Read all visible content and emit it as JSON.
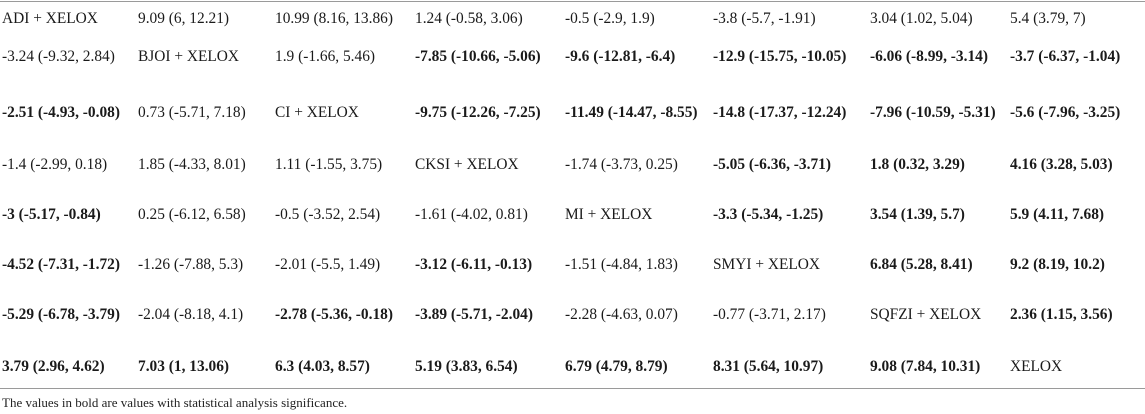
{
  "rows": [
    [
      {
        "text": "ADI + XELOX",
        "bold": false
      },
      {
        "text": "9.09 (6, 12.21)",
        "bold": false
      },
      {
        "text": "10.99 (8.16, 13.86)",
        "bold": false
      },
      {
        "text": "1.24 (-0.58, 3.06)",
        "bold": false
      },
      {
        "text": "-0.5 (-2.9, 1.9)",
        "bold": false
      },
      {
        "text": "-3.8 (-5.7, -1.91)",
        "bold": false
      },
      {
        "text": "3.04 (1.02, 5.04)",
        "bold": false
      },
      {
        "text": "5.4 (3.79, 7)",
        "bold": false
      }
    ],
    [
      {
        "text": "-3.24 (-9.32, 2.84)",
        "bold": false
      },
      {
        "text": "BJOI + XELOX",
        "bold": false
      },
      {
        "text": "1.9 (-1.66, 5.46)",
        "bold": false
      },
      {
        "text": "-7.85 (-10.66, -5.06)",
        "bold": true
      },
      {
        "text": "-9.6 (-12.81, -6.4)",
        "bold": true
      },
      {
        "text": "-12.9 (-15.75, -10.05)",
        "bold": true
      },
      {
        "text": "-6.06 (-8.99, -3.14)",
        "bold": true
      },
      {
        "text": "-3.7 (-6.37, -1.04)",
        "bold": true
      }
    ],
    [
      {
        "text": "-2.51 (-4.93, -0.08)",
        "bold": true
      },
      {
        "text": "0.73 (-5.71, 7.18)",
        "bold": false
      },
      {
        "text": "CI + XELOX",
        "bold": false
      },
      {
        "text": "-9.75 (-12.26, -7.25)",
        "bold": true
      },
      {
        "text": "-11.49 (-14.47, -8.55)",
        "bold": true
      },
      {
        "text": "-14.8 (-17.37, -12.24)",
        "bold": true
      },
      {
        "text": "-7.96 (-10.59, -5.31)",
        "bold": true
      },
      {
        "text": "-5.6 (-7.96, -3.25)",
        "bold": true
      }
    ],
    [
      {
        "text": "-1.4 (-2.99, 0.18)",
        "bold": false
      },
      {
        "text": "1.85 (-4.33, 8.01)",
        "bold": false
      },
      {
        "text": "1.11 (-1.55, 3.75)",
        "bold": false
      },
      {
        "text": "CKSI + XELOX",
        "bold": false
      },
      {
        "text": "-1.74 (-3.73, 0.25)",
        "bold": false
      },
      {
        "text": "-5.05 (-6.36, -3.71)",
        "bold": true
      },
      {
        "text": "1.8 (0.32, 3.29)",
        "bold": true
      },
      {
        "text": "4.16 (3.28, 5.03)",
        "bold": true
      }
    ],
    [
      {
        "text": "-3 (-5.17, -0.84)",
        "bold": true
      },
      {
        "text": "0.25 (-6.12, 6.58)",
        "bold": false
      },
      {
        "text": "-0.5 (-3.52, 2.54)",
        "bold": false
      },
      {
        "text": "-1.61 (-4.02, 0.81)",
        "bold": false
      },
      {
        "text": "MI + XELOX",
        "bold": false
      },
      {
        "text": "-3.3 (-5.34, -1.25)",
        "bold": true
      },
      {
        "text": "3.54 (1.39, 5.7)",
        "bold": true
      },
      {
        "text": "5.9 (4.11, 7.68)",
        "bold": true
      }
    ],
    [
      {
        "text": "-4.52 (-7.31, -1.72)",
        "bold": true
      },
      {
        "text": "-1.26 (-7.88, 5.3)",
        "bold": false
      },
      {
        "text": "-2.01 (-5.5, 1.49)",
        "bold": false
      },
      {
        "text": "-3.12 (-6.11, -0.13)",
        "bold": true
      },
      {
        "text": "-1.51 (-4.84, 1.83)",
        "bold": false
      },
      {
        "text": "SMYI + XELOX",
        "bold": false
      },
      {
        "text": "6.84 (5.28, 8.41)",
        "bold": true
      },
      {
        "text": "9.2 (8.19, 10.2)",
        "bold": true
      }
    ],
    [
      {
        "text": "-5.29 (-6.78, -3.79)",
        "bold": true
      },
      {
        "text": "-2.04 (-8.18, 4.1)",
        "bold": false
      },
      {
        "text": "-2.78 (-5.36, -0.18)",
        "bold": true
      },
      {
        "text": "-3.89 (-5.71, -2.04)",
        "bold": true
      },
      {
        "text": "-2.28 (-4.63, 0.07)",
        "bold": false
      },
      {
        "text": "-0.77 (-3.71, 2.17)",
        "bold": false
      },
      {
        "text": "SQFZI + XELOX",
        "bold": false
      },
      {
        "text": "2.36 (1.15, 3.56)",
        "bold": true
      }
    ],
    [
      {
        "text": "3.79 (2.96, 4.62)",
        "bold": true
      },
      {
        "text": "7.03 (1, 13.06)",
        "bold": true
      },
      {
        "text": "6.3 (4.03, 8.57)",
        "bold": true
      },
      {
        "text": "5.19 (3.83, 6.54)",
        "bold": true
      },
      {
        "text": "6.79 (4.79, 8.79)",
        "bold": true
      },
      {
        "text": "8.31 (5.64, 10.97)",
        "bold": true
      },
      {
        "text": "9.08 (7.84, 10.31)",
        "bold": true
      },
      {
        "text": "XELOX",
        "bold": false
      }
    ]
  ],
  "footnote": "The values in bold are values with statistical analysis significance."
}
